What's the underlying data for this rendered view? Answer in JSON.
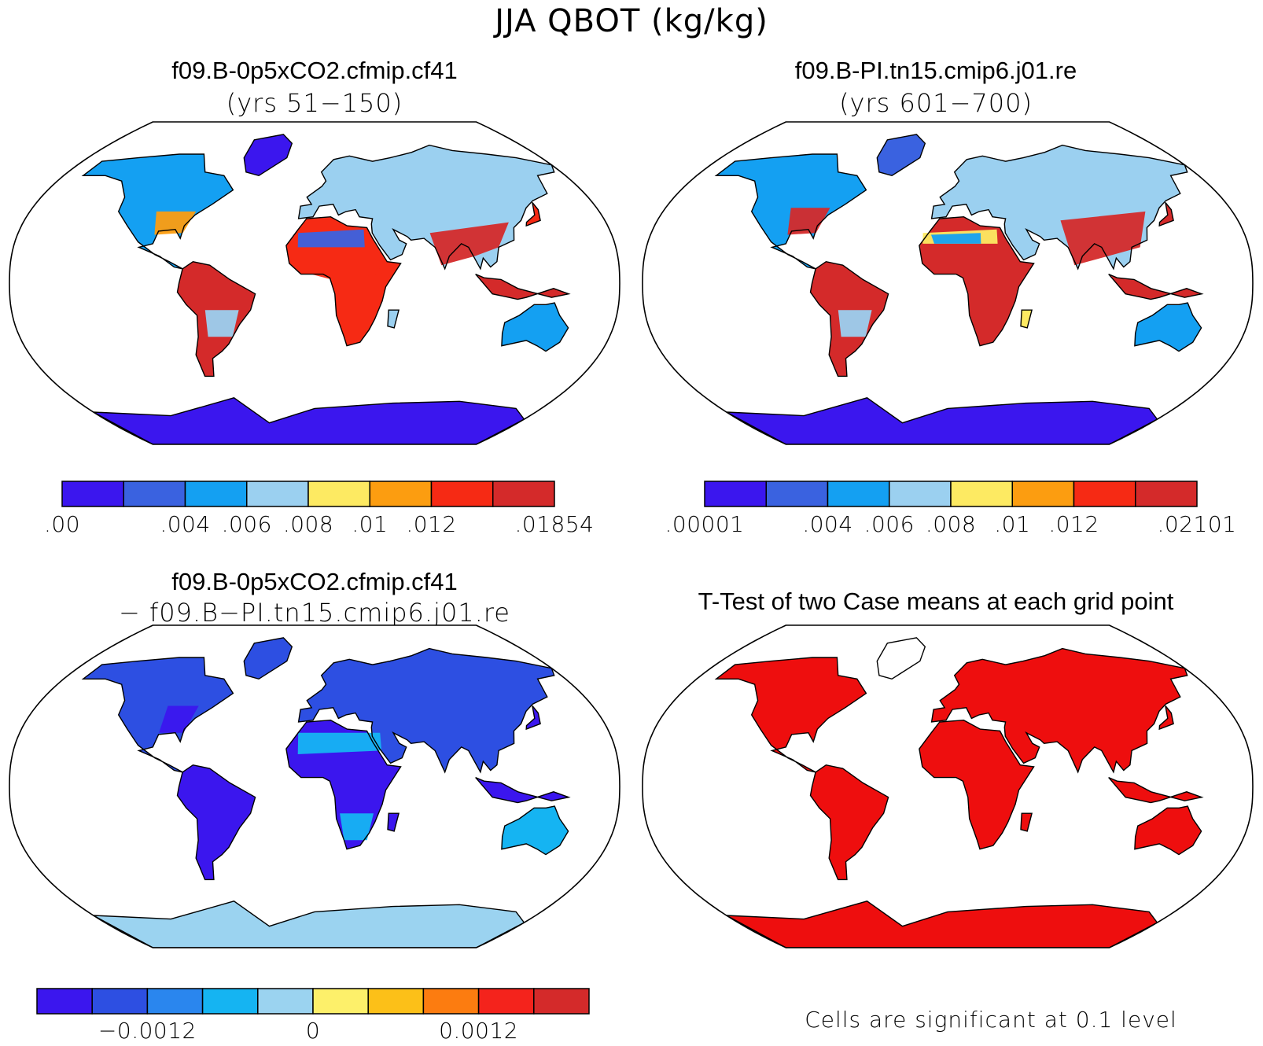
{
  "main_title": "JJA QBOT (kg/kg)",
  "panels": [
    {
      "id": "p1",
      "title": "f09.B-0p5xCO2.cfmip.cf41",
      "subtitle": "(yrs 51−150)",
      "fill": "climatology-0p5xCO2"
    },
    {
      "id": "p2",
      "title": "f09.B-PI.tn15.cmip6.j01.re",
      "subtitle": "(yrs 601−700)",
      "fill": "climatology-PI"
    },
    {
      "id": "p3",
      "title": "f09.B-0p5xCO2.cfmip.cf41",
      "subtitle": "− f09.B−PI.tn15.cmip6.j01.re",
      "fill": "difference"
    },
    {
      "id": "p4",
      "title": "T-Test of two Case means at each grid point",
      "subtitle": "",
      "fill": "significance",
      "note": "Cells are significant at 0.1 level"
    }
  ],
  "colorbars": [
    {
      "id": "cb1",
      "colors": [
        "#3b16ee",
        "#3a62e0",
        "#14a0f2",
        "#9bd0f0",
        "#fdea62",
        "#fc9d10",
        "#f62a14",
        "#d42a2a"
      ],
      "labels": [
        ".00",
        ".004",
        ".006",
        ".008",
        ".01",
        ".012",
        ".01854"
      ],
      "label_bins": [
        0,
        2,
        3,
        4,
        5,
        6,
        8
      ]
    },
    {
      "id": "cb2",
      "colors": [
        "#3b16ee",
        "#3a62e0",
        "#14a0f2",
        "#9bd0f0",
        "#fdea62",
        "#fc9d10",
        "#f62a14",
        "#d42a2a"
      ],
      "labels": [
        ".00001",
        ".004",
        ".006",
        ".008",
        ".01",
        ".012",
        ".02101"
      ],
      "label_bins": [
        0,
        2,
        3,
        4,
        5,
        6,
        8
      ]
    },
    {
      "id": "cb3",
      "colors": [
        "#3b16ee",
        "#2d4fe2",
        "#2a86ee",
        "#15b4f2",
        "#9bd3f0",
        "#fdf06a",
        "#fcc018",
        "#fc7c10",
        "#f4231c",
        "#d42a2a"
      ],
      "labels": [
        "−0.0012",
        "0",
        "0.0012"
      ],
      "label_bins": [
        2,
        5,
        8
      ]
    }
  ],
  "colors": {
    "coast": "#000000",
    "significant": "#ee0e0e"
  }
}
